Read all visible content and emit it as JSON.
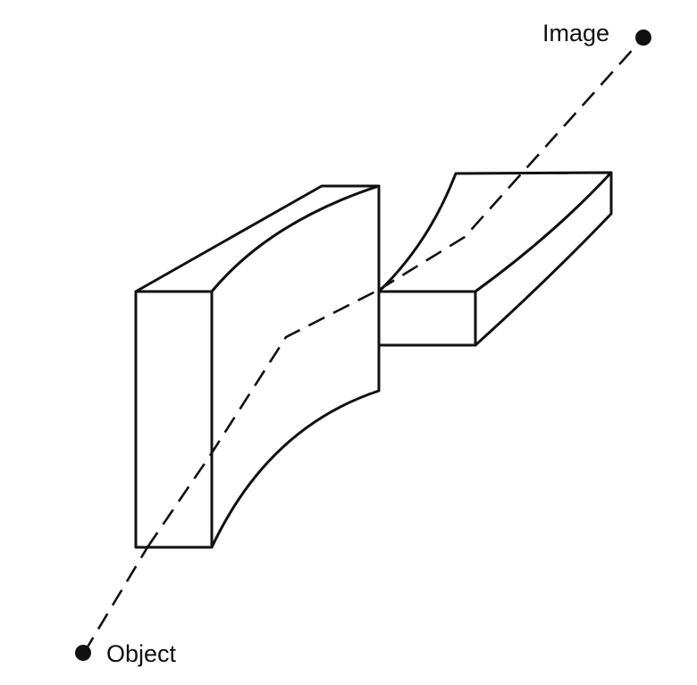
{
  "labels": {
    "image": "Image",
    "object": "Object"
  }
}
